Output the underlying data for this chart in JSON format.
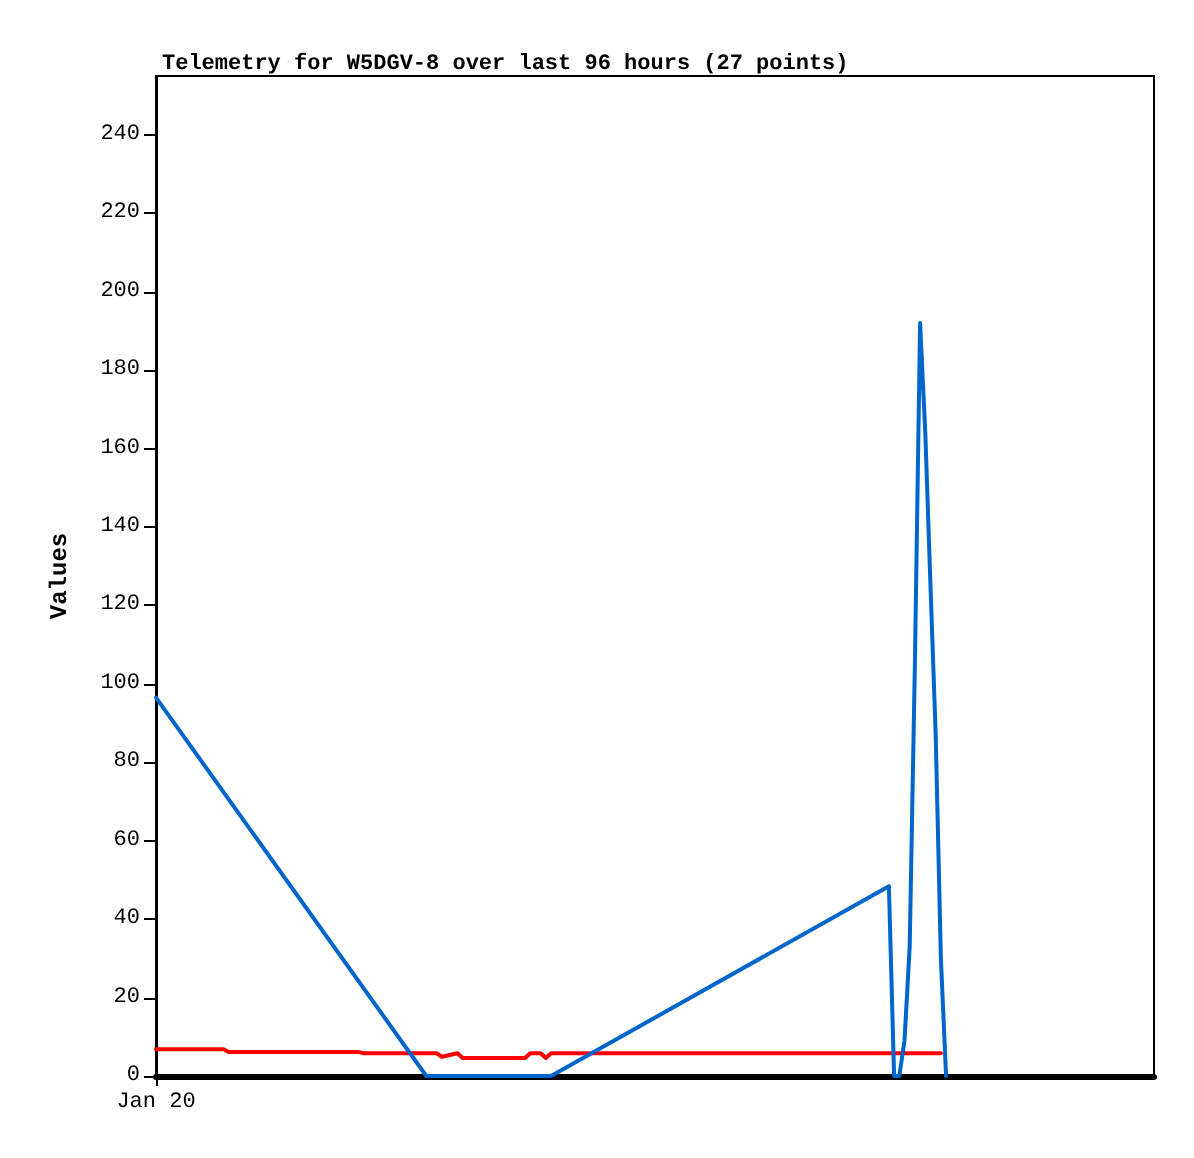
{
  "chart_data": {
    "type": "line",
    "title": "Telemetry for W5DGV-8 over last 96 hours (27 points)",
    "ylabel": "Values",
    "categories": [
      "Jan 20",
      null,
      null,
      null,
      null,
      null,
      null,
      null,
      null,
      null,
      null,
      null,
      null,
      null,
      null,
      null,
      null,
      null,
      null,
      null,
      null,
      null,
      null,
      null,
      null,
      null,
      null,
      null,
      null,
      null,
      null,
      null,
      null,
      null,
      null,
      null,
      null,
      null,
      null,
      null,
      null,
      null,
      null,
      null,
      null,
      null,
      null,
      null,
      null,
      null,
      null,
      null,
      null,
      null,
      null,
      null,
      null,
      null,
      null,
      null,
      null,
      null,
      null,
      null,
      null,
      null,
      null,
      null,
      null,
      null,
      null,
      null,
      null,
      null,
      null,
      null,
      null,
      null,
      null,
      null,
      null,
      null,
      null,
      null,
      null,
      null,
      null,
      null,
      null,
      null,
      null,
      null,
      null,
      null,
      null,
      null,
      null,
      null,
      null,
      null,
      null,
      null,
      null,
      null,
      null,
      null,
      null,
      null,
      null,
      null,
      null,
      null,
      null,
      null,
      null,
      null,
      null,
      null,
      null,
      null,
      null,
      null,
      null,
      null,
      null,
      null,
      null,
      null,
      null,
      null,
      null,
      null,
      null,
      null,
      null,
      null,
      null,
      null,
      null,
      null,
      null,
      null,
      null,
      null,
      null,
      null,
      null,
      null,
      null,
      null,
      null,
      null,
      null,
      null,
      null,
      null,
      null,
      null,
      null,
      null,
      null,
      null,
      null,
      null,
      null,
      null,
      null,
      null,
      null,
      null,
      null,
      null,
      null,
      null,
      null,
      null,
      null,
      null,
      null,
      null,
      null,
      null,
      null,
      null,
      null,
      null,
      null,
      null,
      null,
      null,
      null,
      null,
      null
    ],
    "ylim": [
      0,
      255
    ],
    "yticks": [
      0,
      20,
      40,
      60,
      80,
      100,
      120,
      140,
      160,
      180,
      200,
      220,
      240
    ],
    "grid": false,
    "marker": "none",
    "line_style": "solid",
    "series": [
      {
        "color": "#ff0000",
        "values": [
          6.8,
          null,
          null,
          null,
          null,
          null,
          null,
          null,
          null,
          null,
          null,
          null,
          null,
          6.8,
          6.1,
          null,
          null,
          null,
          null,
          null,
          null,
          null,
          null,
          null,
          null,
          null,
          null,
          null,
          null,
          null,
          null,
          null,
          null,
          null,
          null,
          null,
          null,
          null,
          null,
          6.1,
          5.8,
          null,
          null,
          null,
          null,
          null,
          null,
          null,
          null,
          null,
          null,
          null,
          null,
          null,
          5.8,
          4.9,
          null,
          null,
          5.8,
          4.6,
          null,
          null,
          null,
          null,
          null,
          null,
          null,
          null,
          null,
          null,
          null,
          4.6,
          5.8,
          null,
          5.8,
          4.6,
          5.8,
          null,
          null,
          null,
          null,
          null,
          null,
          null,
          null,
          null,
          null,
          null,
          null,
          null,
          null,
          null,
          null,
          null,
          null,
          null,
          null,
          null,
          null,
          null,
          null,
          null,
          null,
          null,
          null,
          null,
          null,
          null,
          null,
          null,
          null,
          null,
          null,
          null,
          null,
          null,
          null,
          null,
          null,
          null,
          null,
          null,
          null,
          null,
          null,
          null,
          null,
          null,
          null,
          null,
          null,
          null,
          null,
          null,
          null,
          null,
          null,
          null,
          null,
          null,
          null,
          null,
          null,
          null,
          null,
          null,
          null,
          null,
          null,
          null,
          null,
          5.8,
          null,
          null,
          null,
          null,
          null,
          null,
          null,
          null,
          null,
          null,
          null,
          null,
          null,
          null,
          null,
          null,
          null,
          null,
          null,
          null,
          null,
          null,
          null,
          null,
          null,
          null,
          null,
          null,
          null,
          null,
          null,
          null,
          null,
          null,
          null,
          null,
          null,
          null,
          null,
          null,
          null
        ]
      },
      {
        "color": "#0066cc",
        "values": [
          96.5,
          null,
          null,
          null,
          null,
          null,
          null,
          null,
          null,
          null,
          null,
          null,
          null,
          null,
          null,
          null,
          null,
          null,
          null,
          null,
          null,
          null,
          null,
          null,
          null,
          null,
          null,
          null,
          null,
          null,
          null,
          null,
          null,
          null,
          null,
          null,
          null,
          null,
          null,
          null,
          null,
          null,
          null,
          null,
          null,
          null,
          null,
          null,
          null,
          null,
          null,
          null,
          0,
          null,
          null,
          null,
          null,
          null,
          null,
          null,
          null,
          null,
          null,
          null,
          null,
          null,
          null,
          null,
          null,
          null,
          null,
          null,
          null,
          null,
          null,
          null,
          0,
          null,
          null,
          null,
          null,
          null,
          null,
          null,
          null,
          null,
          null,
          null,
          null,
          null,
          null,
          null,
          null,
          null,
          null,
          null,
          null,
          null,
          null,
          null,
          null,
          null,
          null,
          null,
          null,
          null,
          null,
          null,
          null,
          null,
          null,
          null,
          null,
          null,
          null,
          null,
          null,
          null,
          null,
          null,
          null,
          null,
          null,
          null,
          null,
          null,
          null,
          null,
          null,
          null,
          null,
          null,
          null,
          null,
          null,
          null,
          null,
          null,
          null,
          null,
          null,
          48.4,
          0,
          0,
          9,
          33,
          105,
          192,
          164,
          125,
          87,
          30,
          0,
          null,
          null,
          null,
          null,
          null,
          null,
          null,
          null,
          null,
          null,
          null,
          null,
          null,
          null,
          null,
          null,
          null,
          null,
          null,
          null,
          null,
          null,
          null,
          null,
          null,
          null,
          null,
          null,
          null,
          null,
          null,
          null,
          null,
          null,
          null,
          null,
          null,
          null,
          null,
          null
        ]
      }
    ]
  }
}
